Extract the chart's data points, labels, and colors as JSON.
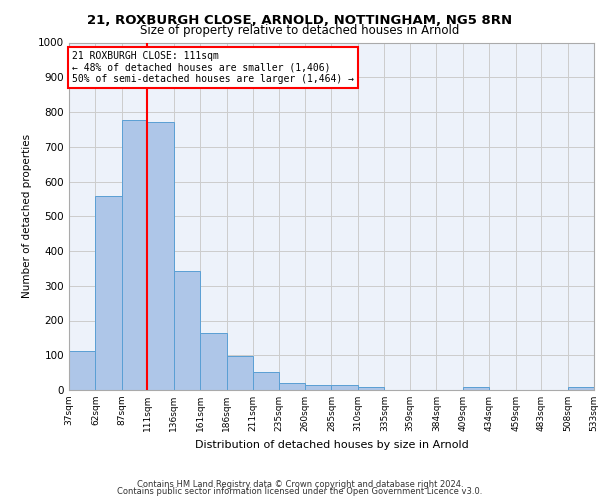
{
  "title_line1": "21, ROXBURGH CLOSE, ARNOLD, NOTTINGHAM, NG5 8RN",
  "title_line2": "Size of property relative to detached houses in Arnold",
  "xlabel": "Distribution of detached houses by size in Arnold",
  "ylabel": "Number of detached properties",
  "footer_line1": "Contains HM Land Registry data © Crown copyright and database right 2024.",
  "footer_line2": "Contains public sector information licensed under the Open Government Licence v3.0.",
  "annotation_line1": "21 ROXBURGH CLOSE: 111sqm",
  "annotation_line2": "← 48% of detached houses are smaller (1,406)",
  "annotation_line3": "50% of semi-detached houses are larger (1,464) →",
  "bar_left_edges": [
    37,
    62,
    87,
    111,
    136,
    161,
    186,
    211,
    235,
    260,
    285,
    310,
    335,
    359,
    384,
    409,
    434,
    459,
    483,
    508
  ],
  "bar_widths": [
    25,
    25,
    24,
    25,
    25,
    25,
    25,
    24,
    25,
    25,
    25,
    25,
    24,
    25,
    25,
    25,
    25,
    24,
    25,
    25
  ],
  "bar_heights": [
    113,
    557,
    778,
    770,
    343,
    165,
    98,
    53,
    20,
    15,
    15,
    8,
    0,
    0,
    0,
    10,
    0,
    0,
    0,
    10
  ],
  "bar_color": "#aec6e8",
  "bar_edge_color": "#5a9fd4",
  "red_line_x": 111,
  "xlim_left": 37,
  "xlim_right": 533,
  "ylim_bottom": 0,
  "ylim_top": 1000,
  "yticks": [
    0,
    100,
    200,
    300,
    400,
    500,
    600,
    700,
    800,
    900,
    1000
  ],
  "xtick_labels": [
    "37sqm",
    "62sqm",
    "87sqm",
    "111sqm",
    "136sqm",
    "161sqm",
    "186sqm",
    "211sqm",
    "235sqm",
    "260sqm",
    "285sqm",
    "310sqm",
    "335sqm",
    "359sqm",
    "384sqm",
    "409sqm",
    "434sqm",
    "459sqm",
    "483sqm",
    "508sqm",
    "533sqm"
  ],
  "xtick_positions": [
    37,
    62,
    87,
    111,
    136,
    161,
    186,
    211,
    235,
    260,
    285,
    310,
    335,
    359,
    384,
    409,
    434,
    459,
    483,
    508,
    533
  ],
  "grid_color": "#cccccc",
  "background_color": "#edf2fa"
}
